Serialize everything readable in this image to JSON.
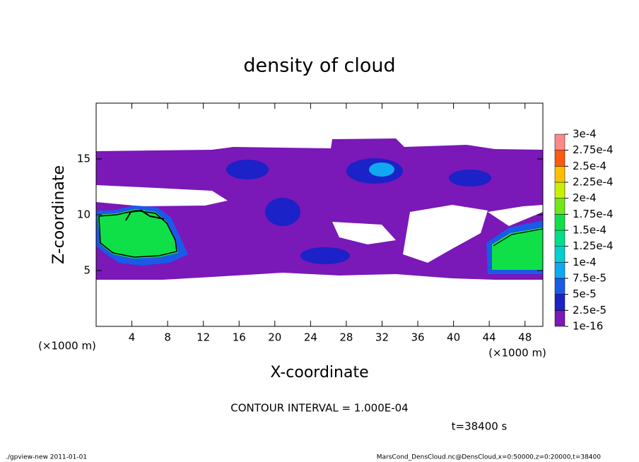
{
  "chart_data": {
    "type": "contour",
    "title": "density of cloud",
    "xlabel": "X-coordinate",
    "ylabel": "Z-coordinate",
    "xunit": "(×1000 m)",
    "xlim": [
      0,
      50
    ],
    "xticks": [
      4,
      8,
      12,
      16,
      20,
      24,
      28,
      32,
      36,
      40,
      44,
      48
    ],
    "ylim": [
      0,
      20
    ],
    "yticks": [
      5,
      10,
      15
    ],
    "levels": [
      {
        "value": 1e-16,
        "label": "1e-16"
      },
      {
        "value": 2.5e-05,
        "label": "2.5e-5"
      },
      {
        "value": 5e-05,
        "label": "5e-5"
      },
      {
        "value": 7.5e-05,
        "label": "7.5e-5"
      },
      {
        "value": 0.0001,
        "label": "1e-4"
      },
      {
        "value": 0.000125,
        "label": "1.25e-4"
      },
      {
        "value": 0.00015,
        "label": "1.5e-4"
      },
      {
        "value": 0.000175,
        "label": "1.75e-4"
      },
      {
        "value": 0.0002,
        "label": "2e-4"
      },
      {
        "value": 0.000225,
        "label": "2.25e-4"
      },
      {
        "value": 0.00025,
        "label": "2.5e-4"
      },
      {
        "value": 0.000275,
        "label": "2.75e-4"
      },
      {
        "value": 0.0003,
        "label": "3e-4"
      }
    ],
    "colors": [
      "#7a18b8",
      "#1a22c8",
      "#1a5ae8",
      "#10a8f0",
      "#00d0d0",
      "#00e08a",
      "#10e048",
      "#70e818",
      "#c8f000",
      "#ffc000",
      "#ff5a10",
      "#ff8888"
    ],
    "contour_interval": "CONTOUR INTERVAL = 1.000E-04",
    "time": "t=38400 s",
    "footer_left": "./gpview-new  2011-01-01",
    "footer_right": "MarsCond_DensCloud.nc@DensCloud,x=0:50000,z=0:20000,t=38400"
  }
}
